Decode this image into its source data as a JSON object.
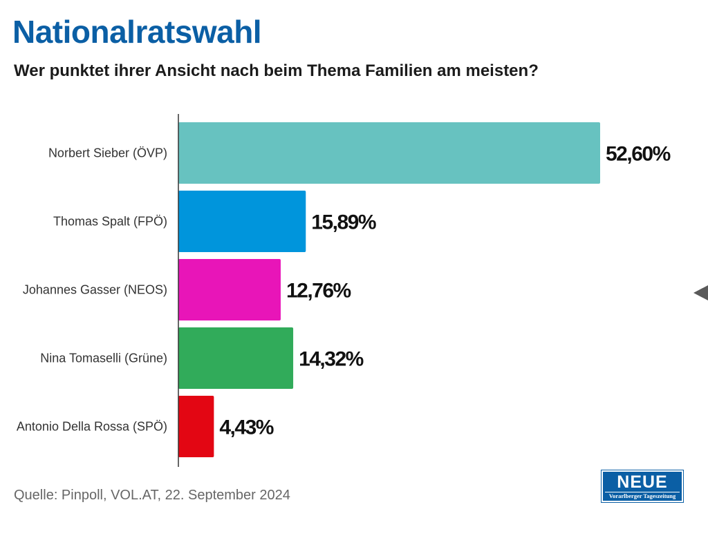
{
  "header": {
    "title": "Nationalratswahl",
    "subtitle": "Wer punktet ihrer Ansicht nach beim Thema Familien am meisten?"
  },
  "footer": {
    "source": "Quelle: Pinpoll, VOL.AT, 22. September 2024"
  },
  "logo": {
    "name": "NEUE",
    "tagline": "Vorarlberger Tageszeitung"
  },
  "colors": {
    "title": "#0b5fa5",
    "axis": "#333333"
  },
  "chart_data": {
    "type": "bar",
    "orientation": "horizontal",
    "categories": [
      "Norbert Sieber (ÖVP)",
      "Thomas Spalt (FPÖ)",
      "Johannes Gasser (NEOS)",
      "Nina Tomaselli (Grüne)",
      "Antonio Della Rossa (SPÖ)"
    ],
    "values": [
      52.6,
      15.89,
      12.76,
      14.32,
      4.43
    ],
    "value_labels": [
      "52,60%",
      "15,89%",
      "12,76%",
      "14,32%",
      "4,43%"
    ],
    "colors": [
      "#67c2c0",
      "#0095dc",
      "#e815b8",
      "#31ab5a",
      "#e30613"
    ],
    "xlim": [
      0,
      52.6
    ],
    "grid": false,
    "legend": "none"
  }
}
